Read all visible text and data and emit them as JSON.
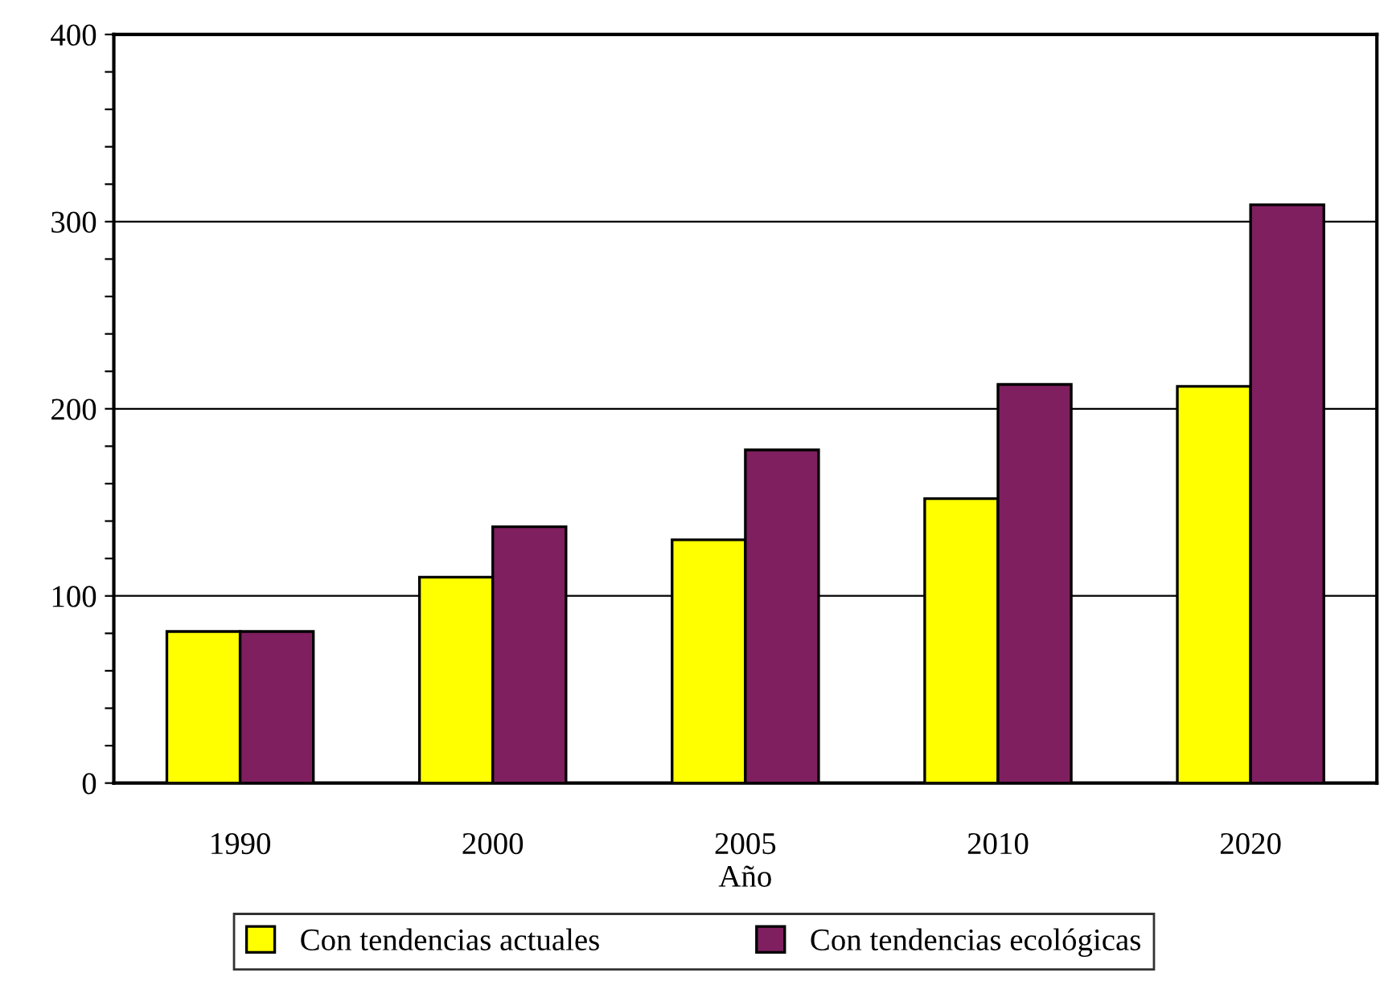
{
  "chart_data": {
    "type": "bar",
    "xlabel": "Año",
    "categories": [
      "1990",
      "2000",
      "2005",
      "2010",
      "2020"
    ],
    "series": [
      {
        "name": "Con tendencias actuales",
        "color": "#ffff00",
        "values": [
          81,
          110,
          130,
          152,
          212
        ]
      },
      {
        "name": "Con tendencias ecológicas",
        "color": "#7f1f5f",
        "values": [
          81,
          137,
          178,
          213,
          309
        ]
      }
    ],
    "ylim": [
      0,
      400
    ],
    "yticks": [
      0,
      {
        "value": 20,
        "label": null
      },
      {
        "value": 40,
        "label": null
      },
      {
        "value": 60,
        "label": null
      },
      {
        "value": 80,
        "label": null
      },
      100,
      {
        "value": 120,
        "label": null
      },
      {
        "value": 140,
        "label": null
      },
      {
        "value": 160,
        "label": null
      },
      {
        "value": 180,
        "label": null
      },
      200,
      {
        "value": 220,
        "label": null
      },
      {
        "value": 240,
        "label": null
      },
      {
        "value": 260,
        "label": null
      },
      {
        "value": 280,
        "label": null
      },
      300,
      {
        "value": 320,
        "label": null
      },
      {
        "value": 340,
        "label": null
      },
      {
        "value": 360,
        "label": null
      },
      {
        "value": 380,
        "label": null
      },
      400
    ],
    "grid": "y",
    "legend": "bottom"
  }
}
